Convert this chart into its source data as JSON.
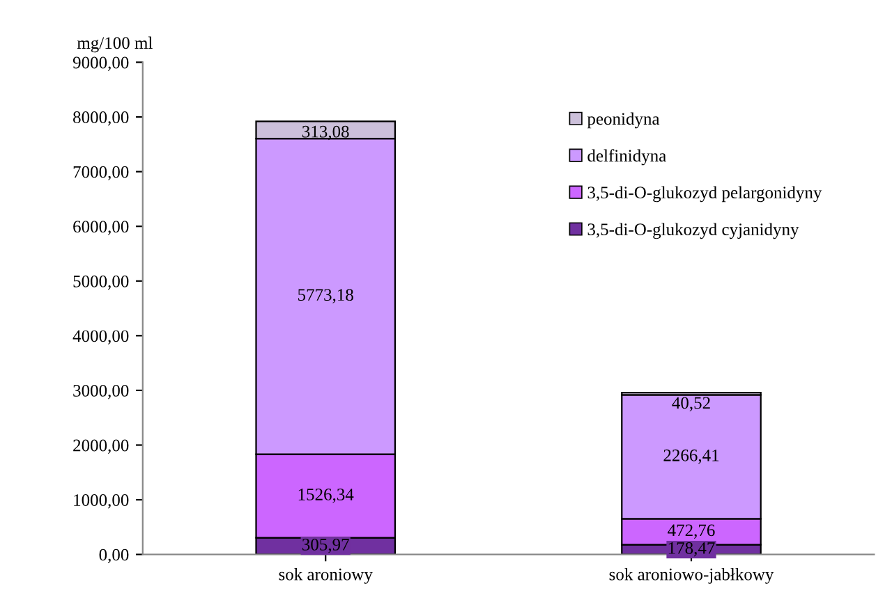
{
  "chart_data": {
    "type": "bar",
    "stacked": true,
    "ylabel": "mg/100 ml",
    "categories": [
      "sok aroniowy",
      "sok aroniowo-jabłkowy"
    ],
    "series": [
      {
        "name": "3,5-di-O-glukozyd cyjanidyny",
        "color": "#7030a0",
        "values": [
          305.97,
          178.47
        ],
        "value_labels": [
          "305,97",
          "178,47"
        ]
      },
      {
        "name": "3,5-di-O-glukozyd pelargonidyny",
        "color": "#cc66ff",
        "values": [
          1526.34,
          472.76
        ],
        "value_labels": [
          "1526,34",
          "472,76"
        ]
      },
      {
        "name": "delfinidyna",
        "color": "#cc99ff",
        "values": [
          5773.18,
          2266.41
        ],
        "value_labels": [
          "5773,18",
          "2266,41"
        ]
      },
      {
        "name": "peonidyna",
        "color": "#ccc0da",
        "values": [
          313.08,
          40.52
        ],
        "value_labels": [
          "313,08",
          "40,52"
        ]
      }
    ],
    "ylim": [
      0,
      9000
    ],
    "yticks": [
      {
        "value": 0,
        "label": "0,00"
      },
      {
        "value": 1000,
        "label": "1000,00"
      },
      {
        "value": 2000,
        "label": "2000,00"
      },
      {
        "value": 3000,
        "label": "3000,00"
      },
      {
        "value": 4000,
        "label": "4000,00"
      },
      {
        "value": 5000,
        "label": "5000,00"
      },
      {
        "value": 6000,
        "label": "6000,00"
      },
      {
        "value": 7000,
        "label": "7000,00"
      },
      {
        "value": 8000,
        "label": "8000,00"
      },
      {
        "value": 9000,
        "label": "9000,00"
      }
    ],
    "legend": "top right",
    "grid": false
  }
}
